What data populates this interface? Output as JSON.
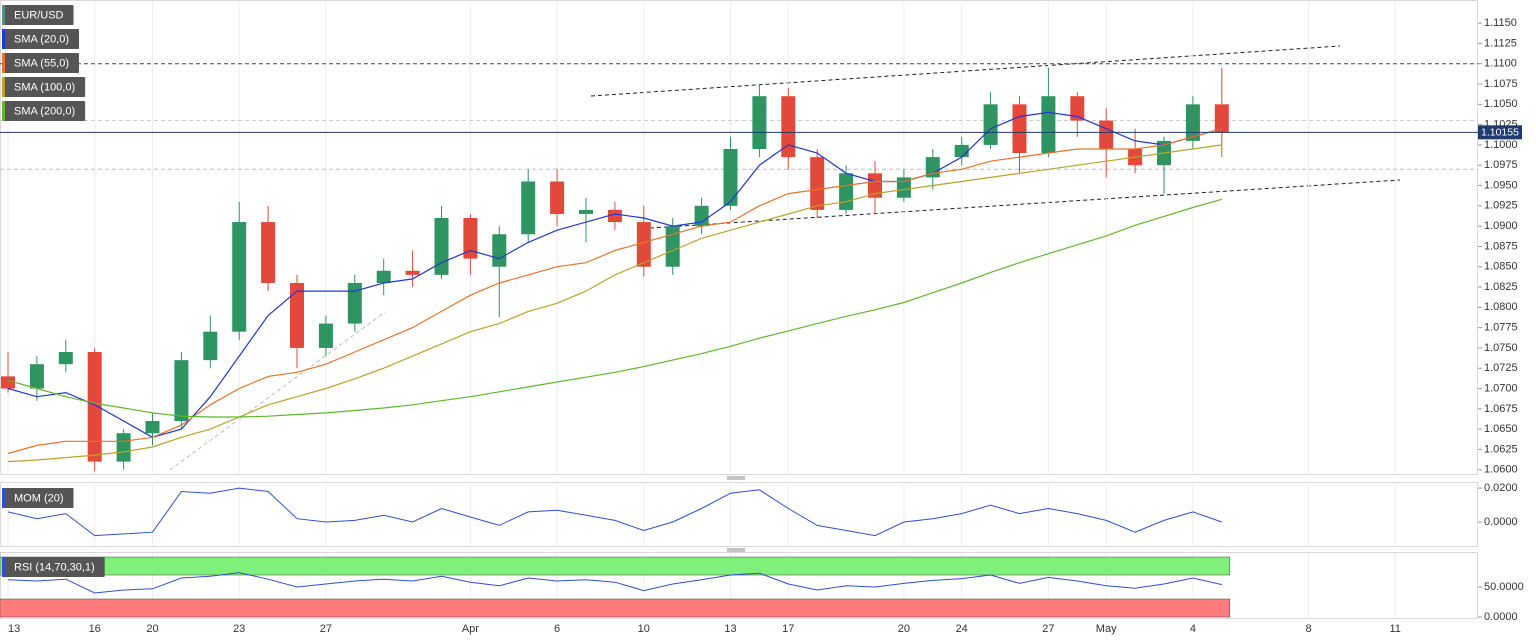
{
  "chart_data": [
    {
      "type": "candlestick",
      "symbol": "EUR/USD",
      "categories": [
        "13",
        null,
        null,
        "16",
        null,
        "20",
        null,
        null,
        "23",
        null,
        null,
        "27",
        null,
        null,
        null,
        null,
        "Apr",
        null,
        null,
        "6",
        null,
        null,
        "10",
        null,
        null,
        "13",
        null,
        "17",
        null,
        null,
        null,
        "20",
        null,
        "24",
        null,
        null,
        "27",
        null,
        "May",
        null,
        null,
        "4",
        null,
        null,
        null,
        "8",
        null,
        null,
        "11"
      ],
      "open": [
        1.0715,
        1.07,
        1.073,
        1.0745,
        1.061,
        1.0645,
        1.066,
        1.0735,
        1.077,
        1.0905,
        1.083,
        1.075,
        1.078,
        1.083,
        1.0845,
        1.084,
        1.091,
        1.085,
        1.089,
        1.0955,
        1.0915,
        1.092,
        1.0905,
        1.085,
        1.09,
        1.0925,
        1.0995,
        1.106,
        1.0985,
        1.092,
        1.0965,
        1.0935,
        1.096,
        1.0985,
        1.1,
        1.105,
        1.099,
        1.106,
        1.103,
        1.0995,
        1.0975,
        1.1005,
        1.105,
        null,
        null,
        null,
        null,
        null,
        null
      ],
      "high": [
        1.0745,
        1.074,
        1.076,
        1.075,
        1.065,
        1.067,
        1.0745,
        1.079,
        1.093,
        1.0925,
        1.084,
        1.079,
        1.084,
        1.086,
        1.087,
        1.0925,
        1.0915,
        1.09,
        1.097,
        1.097,
        1.0935,
        1.093,
        1.0925,
        1.091,
        1.0935,
        1.101,
        1.1075,
        1.107,
        1.0995,
        1.0975,
        1.098,
        1.097,
        1.0995,
        1.101,
        1.1065,
        1.106,
        1.1095,
        1.1065,
        1.1045,
        1.102,
        1.101,
        1.106,
        1.1095,
        null,
        null,
        null,
        null,
        null,
        null
      ],
      "low": [
        1.0695,
        1.0685,
        1.072,
        1.0598,
        1.06,
        1.063,
        1.065,
        1.0725,
        1.076,
        1.082,
        1.0725,
        1.074,
        1.077,
        1.0815,
        1.0825,
        1.0835,
        1.084,
        1.0788,
        1.088,
        1.09,
        1.088,
        1.0895,
        1.0838,
        1.084,
        1.089,
        1.092,
        1.0985,
        1.097,
        1.091,
        1.0915,
        1.0915,
        1.093,
        1.0945,
        1.0975,
        1.0995,
        1.0965,
        1.0985,
        1.101,
        1.096,
        1.0965,
        1.094,
        1.0995,
        1.0985,
        null,
        null,
        null,
        null,
        null,
        null
      ],
      "close": [
        1.07,
        1.073,
        1.0745,
        1.061,
        1.0645,
        1.066,
        1.0735,
        1.077,
        1.0905,
        1.083,
        1.075,
        1.078,
        1.083,
        1.0845,
        1.084,
        1.091,
        1.086,
        1.089,
        1.0955,
        1.0915,
        1.092,
        1.0905,
        1.085,
        1.09,
        1.0925,
        1.0995,
        1.106,
        1.0985,
        1.092,
        1.0965,
        1.0935,
        1.096,
        1.0985,
        1.1,
        1.105,
        1.099,
        1.106,
        1.103,
        1.0995,
        1.0975,
        1.1005,
        1.105,
        1.1015,
        null,
        null,
        null,
        null,
        null,
        null
      ],
      "up_color": "#2e9461",
      "down_color": "#e2493b",
      "series": [
        {
          "name": "SMA (20,0)",
          "color": "#2238d6",
          "values": [
            1.07,
            1.069,
            1.0695,
            1.068,
            1.066,
            1.064,
            1.065,
            1.069,
            1.074,
            1.079,
            1.082,
            1.082,
            1.082,
            1.083,
            1.0835,
            1.0855,
            1.087,
            1.086,
            1.088,
            1.0895,
            1.0905,
            1.0915,
            1.091,
            1.09,
            1.0905,
            1.093,
            1.0975,
            1.1,
            1.099,
            1.0965,
            1.0955,
            1.0955,
            1.0965,
            1.0985,
            1.102,
            1.1035,
            1.104,
            1.1035,
            1.102,
            1.1005,
            1.1,
            1.101,
            1.102,
            null,
            null,
            null,
            null,
            null,
            null
          ]
        },
        {
          "name": "SMA (55,0)",
          "color": "#e8732a",
          "values": [
            1.062,
            1.063,
            1.0635,
            1.0635,
            1.0635,
            1.064,
            1.0655,
            1.068,
            1.07,
            1.0715,
            1.072,
            1.073,
            1.0745,
            1.076,
            1.0775,
            1.0795,
            1.0815,
            1.083,
            1.084,
            1.085,
            1.0855,
            1.087,
            1.088,
            1.089,
            1.09,
            1.0905,
            1.0925,
            1.094,
            1.0945,
            1.095,
            1.0955,
            1.0955,
            1.0965,
            1.097,
            1.098,
            1.0985,
            1.099,
            1.0995,
            1.0995,
            1.0995,
            1.1,
            1.101,
            1.102,
            null,
            null,
            null,
            null,
            null,
            null
          ]
        },
        {
          "name": "SMA (100,0)",
          "color": "#bca22c",
          "values": [
            1.061,
            1.0612,
            1.0615,
            1.0618,
            1.0622,
            1.0628,
            1.064,
            1.065,
            1.0665,
            1.068,
            1.069,
            1.07,
            1.0712,
            1.0725,
            1.074,
            1.0755,
            1.077,
            1.078,
            1.0795,
            1.0805,
            1.082,
            1.084,
            1.0855,
            1.087,
            1.0885,
            1.0895,
            1.0905,
            1.0915,
            1.0925,
            1.093,
            1.094,
            1.0945,
            1.095,
            1.0955,
            1.096,
            1.0965,
            1.097,
            1.0975,
            1.098,
            1.0985,
            1.099,
            1.0995,
            1.1,
            null,
            null,
            null,
            null,
            null,
            null
          ]
        },
        {
          "name": "SMA (200,0)",
          "color": "#62b72c",
          "values": [
            1.071,
            1.07,
            1.069,
            1.0682,
            1.0676,
            1.067,
            1.0666,
            1.0665,
            1.0665,
            1.0666,
            1.0668,
            1.067,
            1.0673,
            1.0676,
            1.068,
            1.0685,
            1.069,
            1.0696,
            1.0702,
            1.0708,
            1.0714,
            1.072,
            1.0727,
            1.0735,
            1.0743,
            1.0752,
            1.0762,
            1.0771,
            1.078,
            1.0789,
            1.0797,
            1.0806,
            1.0818,
            1.083,
            1.0843,
            1.0855,
            1.0866,
            1.0877,
            1.0888,
            1.0901,
            1.0912,
            1.0923,
            1.0933,
            null,
            null,
            null,
            null,
            null,
            null
          ]
        }
      ],
      "ylim": [
        1.0596,
        1.1176
      ],
      "yticks": [
        {
          "value": 1.06,
          "label": "1.0600"
        },
        {
          "value": 1.0625,
          "label": "1.0625"
        },
        {
          "value": 1.065,
          "label": "1.0650"
        },
        {
          "value": 1.0675,
          "label": "1.0675"
        },
        {
          "value": 1.07,
          "label": "1.0700"
        },
        {
          "value": 1.0725,
          "label": "1.0725"
        },
        {
          "value": 1.075,
          "label": "1.0750"
        },
        {
          "value": 1.0775,
          "label": "1.0775"
        },
        {
          "value": 1.08,
          "label": "1.0800"
        },
        {
          "value": 1.0825,
          "label": "1.0825"
        },
        {
          "value": 1.085,
          "label": "1.0850"
        },
        {
          "value": 1.0875,
          "label": "1.0875"
        },
        {
          "value": 1.09,
          "label": "1.0900"
        },
        {
          "value": 1.0925,
          "label": "1.0925"
        },
        {
          "value": 1.095,
          "label": "1.0950"
        },
        {
          "value": 1.0975,
          "label": "1.0975"
        },
        {
          "value": 1.1,
          "label": "1.1000"
        },
        {
          "value": 1.1025,
          "label": "1.1025"
        },
        {
          "value": 1.105,
          "label": "1.1050"
        },
        {
          "value": 1.1075,
          "label": "1.1075"
        },
        {
          "value": 1.11,
          "label": "1.1100"
        },
        {
          "value": 1.1125,
          "label": "1.1125"
        },
        {
          "value": 1.115,
          "label": "1.1150"
        }
      ],
      "reference_lines": [
        {
          "value": 1.11,
          "color": "#444444"
        },
        {
          "value": 1.103,
          "color": "#cccccc"
        },
        {
          "value": 1.097,
          "color": "#bbbbbb"
        }
      ],
      "last_price": 1.10155,
      "last_price_color": "#1f3b6e"
    },
    {
      "type": "line",
      "series": [
        {
          "name": "MOM (20)",
          "color": "#2f4fd8",
          "values": [
            0.006,
            0.002,
            0.005,
            -0.008,
            -0.007,
            -0.006,
            0.018,
            0.017,
            0.02,
            0.018,
            0.002,
            0,
            0.001,
            0.004,
            0,
            0.008,
            0.003,
            -0.002,
            0.006,
            0.007,
            0.004,
            0.001,
            -0.005,
            0,
            0.008,
            0.017,
            0.019,
            0.008,
            -0.002,
            -0.005,
            -0.008,
            0,
            0.002,
            0.005,
            0.01,
            0.005,
            0.008,
            0.005,
            0.001,
            -0.006,
            0.001,
            0.006,
            0,
            null,
            null,
            null,
            null,
            null,
            null
          ]
        }
      ],
      "ylim": [
        -0.0141,
        0.0224
      ],
      "yticks": [
        {
          "value": 0.02,
          "label": "0.0200"
        },
        {
          "value": 0,
          "label": "0.0000"
        }
      ]
    },
    {
      "type": "line",
      "series": [
        {
          "name": "RSI (14,70,30,1)",
          "color": "#2f4fd8",
          "values": [
            62,
            60,
            63,
            40,
            45,
            47,
            65,
            68,
            74,
            63,
            50,
            55,
            60,
            63,
            60,
            68,
            58,
            52,
            65,
            60,
            62,
            58,
            44,
            55,
            62,
            70,
            73,
            55,
            45,
            52,
            50,
            56,
            61,
            64,
            70,
            56,
            66,
            60,
            52,
            48,
            55,
            65,
            54,
            null,
            null,
            null,
            null,
            null,
            null
          ]
        }
      ],
      "bands": [
        {
          "from": 70,
          "to": 100,
          "color": "#7ff07a"
        },
        {
          "from": 0,
          "to": 30,
          "color": "#ff7b7b"
        }
      ],
      "ylim": [
        0,
        106.7
      ],
      "yticks": [
        {
          "value": 50,
          "label": "50.0000"
        },
        {
          "value": 0,
          "label": "0.0000"
        }
      ]
    }
  ]
}
